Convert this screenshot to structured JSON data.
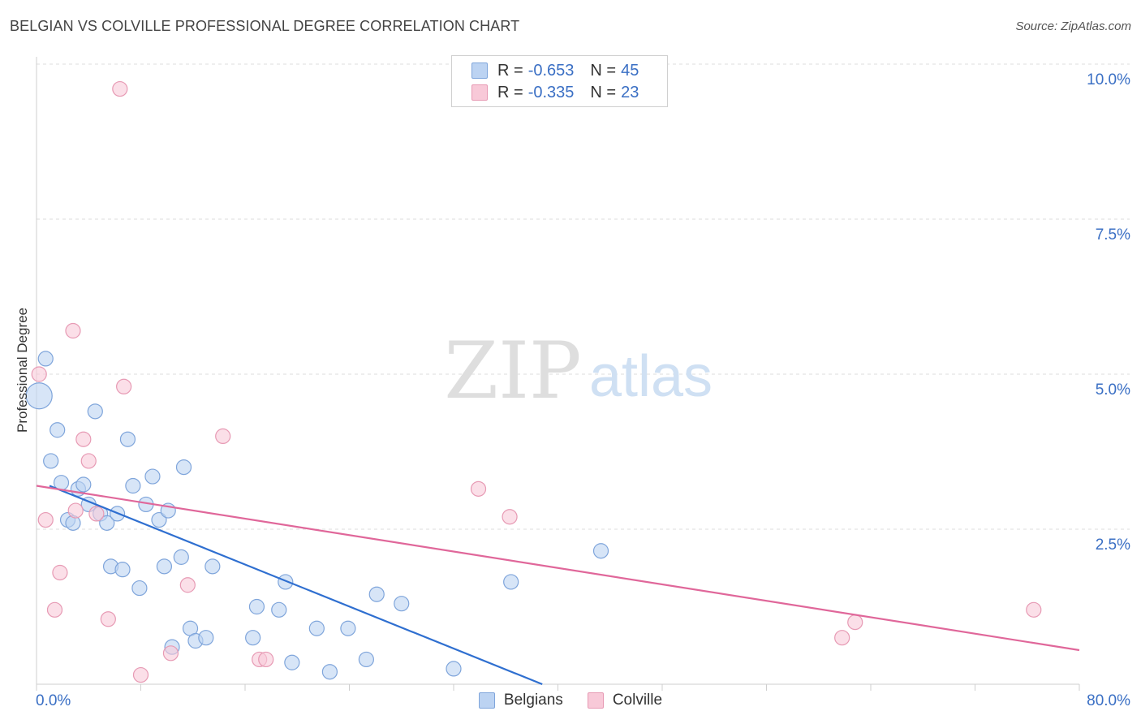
{
  "header": {
    "title": "BELGIAN VS COLVILLE PROFESSIONAL DEGREE CORRELATION CHART",
    "source": "Source: ZipAtlas.com"
  },
  "watermark": {
    "zip": "ZIP",
    "atlas": "atlas"
  },
  "legend": {
    "r_label": "R =",
    "n_label": "N =",
    "belgians": {
      "r": "-0.653",
      "n": "45"
    },
    "colville": {
      "r": "-0.335",
      "n": "23"
    }
  },
  "colors": {
    "belgians_fill": "#bcd3f2",
    "belgians_stroke": "#7fa5db",
    "belgians_line": "#2f6fd0",
    "colville_fill": "#f8c9d8",
    "colville_stroke": "#e79ab4",
    "colville_line": "#e0679a",
    "tick_label": "#3a6fc4"
  },
  "chart_data": {
    "type": "scatter",
    "title": "BELGIAN VS COLVILLE PROFESSIONAL DEGREE CORRELATION CHART",
    "xlabel": "",
    "ylabel": "Professional Degree",
    "xlim": [
      0,
      80
    ],
    "ylim": [
      0,
      10.4
    ],
    "x_tick_labels": [
      "0.0%",
      "80.0%"
    ],
    "y_ticks": [
      2.5,
      5.0,
      7.5,
      10.0
    ],
    "y_tick_labels": [
      "2.5%",
      "5.0%",
      "7.5%",
      "10.0%"
    ],
    "grid": true,
    "legend_position": "top-center",
    "series": [
      {
        "name": "Belgians",
        "points": [
          [
            0.2,
            4.65,
            16
          ],
          [
            0.7,
            5.25,
            9
          ],
          [
            1.1,
            3.6,
            9
          ],
          [
            1.6,
            4.1,
            9
          ],
          [
            1.9,
            3.25,
            9
          ],
          [
            2.4,
            2.65,
            9
          ],
          [
            2.8,
            2.6,
            9
          ],
          [
            3.2,
            3.15,
            9
          ],
          [
            3.6,
            3.22,
            9
          ],
          [
            4.0,
            2.9,
            9
          ],
          [
            4.5,
            4.4,
            9
          ],
          [
            4.9,
            2.75,
            9
          ],
          [
            5.4,
            2.6,
            9
          ],
          [
            5.7,
            1.9,
            9
          ],
          [
            6.2,
            2.75,
            9
          ],
          [
            6.6,
            1.85,
            9
          ],
          [
            7.0,
            3.95,
            9
          ],
          [
            7.4,
            3.2,
            9
          ],
          [
            7.9,
            1.55,
            9
          ],
          [
            8.4,
            2.9,
            9
          ],
          [
            8.9,
            3.35,
            9
          ],
          [
            9.4,
            2.65,
            9
          ],
          [
            9.8,
            1.9,
            9
          ],
          [
            10.1,
            2.8,
            9
          ],
          [
            10.4,
            0.6,
            9
          ],
          [
            11.1,
            2.05,
            9
          ],
          [
            11.3,
            3.5,
            9
          ],
          [
            11.8,
            0.9,
            9
          ],
          [
            12.2,
            0.7,
            9
          ],
          [
            13.0,
            0.75,
            9
          ],
          [
            13.5,
            1.9,
            9
          ],
          [
            16.6,
            0.75,
            9
          ],
          [
            16.9,
            1.25,
            9
          ],
          [
            18.6,
            1.2,
            9
          ],
          [
            19.1,
            1.65,
            9
          ],
          [
            19.6,
            0.35,
            9
          ],
          [
            21.5,
            0.9,
            9
          ],
          [
            22.5,
            0.2,
            9
          ],
          [
            23.9,
            0.9,
            9
          ],
          [
            25.3,
            0.4,
            9
          ],
          [
            26.1,
            1.45,
            9
          ],
          [
            28.0,
            1.3,
            9
          ],
          [
            32.0,
            0.25,
            9
          ],
          [
            36.4,
            1.65,
            9
          ],
          [
            43.3,
            2.15,
            9
          ]
        ],
        "trend": [
          [
            1.0,
            3.2
          ],
          [
            38.8,
            0.0
          ]
        ]
      },
      {
        "name": "Colville",
        "points": [
          [
            0.2,
            5.0,
            9
          ],
          [
            0.7,
            2.65,
            9
          ],
          [
            1.4,
            1.2,
            9
          ],
          [
            1.8,
            1.8,
            9
          ],
          [
            3.0,
            2.8,
            9
          ],
          [
            2.8,
            5.7,
            9
          ],
          [
            3.6,
            3.95,
            9
          ],
          [
            4.0,
            3.6,
            9
          ],
          [
            4.6,
            2.75,
            9
          ],
          [
            5.5,
            1.05,
            9
          ],
          [
            6.4,
            9.6,
            9
          ],
          [
            6.7,
            4.8,
            9
          ],
          [
            8.0,
            0.15,
            9
          ],
          [
            10.3,
            0.5,
            9
          ],
          [
            11.6,
            1.6,
            9
          ],
          [
            14.3,
            4.0,
            9
          ],
          [
            17.1,
            0.4,
            9
          ],
          [
            17.6,
            0.4,
            9
          ],
          [
            33.9,
            3.15,
            9
          ],
          [
            36.3,
            2.7,
            9
          ],
          [
            61.8,
            0.75,
            9
          ],
          [
            62.8,
            1.0,
            9
          ],
          [
            76.5,
            1.2,
            9
          ]
        ],
        "trend": [
          [
            0.0,
            3.2
          ],
          [
            80.0,
            0.55
          ]
        ]
      }
    ]
  },
  "bottom_legend": [
    "Belgians",
    "Colville"
  ]
}
